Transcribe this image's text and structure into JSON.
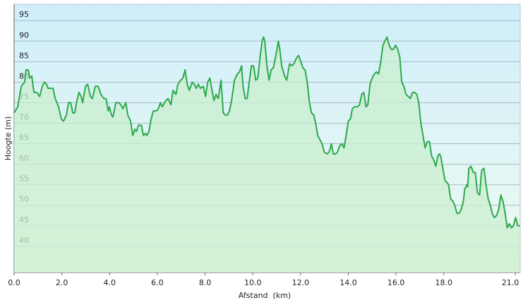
{
  "chart_data": {
    "type": "area",
    "color": "#2ea84c",
    "fill": "#c9efcf",
    "x_label": "Afstand  (km)",
    "y_label": "Hoogte (m)",
    "xlim": [
      0,
      21.2
    ],
    "ylim": [
      33.6,
      99
    ],
    "grid": true,
    "xticks": [
      {
        "value": 0,
        "label": "0.0"
      },
      {
        "value": 2,
        "label": "2.0"
      },
      {
        "value": 4,
        "label": "4.0"
      },
      {
        "value": 6,
        "label": "6.0"
      },
      {
        "value": 8,
        "label": "8.0"
      },
      {
        "value": 10,
        "label": "10.0"
      },
      {
        "value": 12,
        "label": "12.0"
      },
      {
        "value": 14,
        "label": "14.0"
      },
      {
        "value": 16,
        "label": "16.0"
      },
      {
        "value": 18,
        "label": "18.0"
      },
      {
        "value": 21,
        "label": "21.0"
      }
    ],
    "yticks": [
      40,
      45,
      50,
      55,
      60,
      65,
      70,
      75,
      80,
      85,
      90,
      95
    ],
    "x": [
      0,
      0.15,
      0.3,
      0.44,
      0.5,
      0.59,
      0.65,
      0.74,
      0.83,
      0.95,
      1.07,
      1.18,
      1.27,
      1.36,
      1.42,
      1.63,
      1.72,
      1.86,
      1.98,
      2.07,
      2.19,
      2.28,
      2.37,
      2.46,
      2.54,
      2.63,
      2.72,
      2.81,
      2.87,
      2.99,
      3.08,
      3.2,
      3.28,
      3.4,
      3.52,
      3.64,
      3.76,
      3.85,
      3.94,
      3.99,
      4.08,
      4.14,
      4.26,
      4.38,
      4.47,
      4.56,
      4.68,
      4.76,
      4.88,
      4.97,
      5.06,
      5.12,
      5.21,
      5.33,
      5.42,
      5.5,
      5.56,
      5.65,
      5.74,
      5.83,
      5.95,
      6.04,
      6.13,
      6.21,
      6.36,
      6.45,
      6.57,
      6.66,
      6.78,
      6.86,
      6.98,
      7.07,
      7.16,
      7.25,
      7.34,
      7.46,
      7.55,
      7.63,
      7.72,
      7.81,
      7.93,
      8.02,
      8.11,
      8.2,
      8.29,
      8.37,
      8.46,
      8.55,
      8.67,
      8.76,
      8.85,
      8.94,
      9.02,
      9.11,
      9.23,
      9.35,
      9.44,
      9.53,
      9.59,
      9.68,
      9.76,
      9.85,
      9.94,
      10.03,
      10.12,
      10.21,
      10.3,
      10.39,
      10.45,
      10.5,
      10.59,
      10.68,
      10.77,
      10.86,
      10.98,
      11.07,
      11.13,
      11.21,
      11.33,
      11.42,
      11.54,
      11.63,
      11.72,
      11.84,
      11.92,
      12.01,
      12.1,
      12.19,
      12.28,
      12.37,
      12.46,
      12.55,
      12.63,
      12.72,
      12.81,
      12.9,
      12.99,
      13.11,
      13.2,
      13.29,
      13.37,
      13.46,
      13.55,
      13.64,
      13.73,
      13.82,
      13.91,
      14,
      14.09,
      14.17,
      14.26,
      14.38,
      14.47,
      14.56,
      14.65,
      14.74,
      14.82,
      14.91,
      15,
      15.09,
      15.18,
      15.27,
      15.36,
      15.45,
      15.53,
      15.62,
      15.71,
      15.8,
      15.89,
      15.98,
      16.07,
      16.16,
      16.24,
      16.33,
      16.42,
      16.51,
      16.6,
      16.69,
      16.78,
      16.87,
      16.95,
      17.04,
      17.13,
      17.22,
      17.31,
      17.4,
      17.49,
      17.58,
      17.67,
      17.75,
      17.81,
      17.87,
      17.96,
      18.05,
      18.14,
      18.2,
      18.29,
      18.38,
      18.46,
      18.55,
      18.64,
      18.73,
      18.82,
      18.88,
      18.97,
      19,
      19.05,
      19.14,
      19.24,
      19.32,
      19.41,
      19.5,
      19.59,
      19.68,
      19.77,
      19.86,
      19.95,
      20.03,
      20.12,
      20.21,
      20.3,
      20.39,
      20.48,
      20.57,
      20.66,
      20.74,
      20.83,
      20.92,
      21.01,
      21.1,
      21.19
    ],
    "values": [
      72.5,
      74,
      79,
      80,
      83,
      83,
      81,
      81.5,
      77.5,
      77.5,
      76.5,
      79,
      80,
      79.5,
      78.5,
      78.5,
      76,
      74,
      71,
      70.5,
      72,
      75,
      75,
      72.5,
      72.5,
      75.5,
      77.5,
      76.5,
      75,
      79,
      79.5,
      76.5,
      76,
      79,
      79,
      77,
      76,
      76,
      73,
      74,
      72,
      71.5,
      75,
      75,
      74.5,
      73.5,
      75,
      72,
      70.5,
      67,
      68.5,
      68,
      69.5,
      69.5,
      67,
      67.5,
      67,
      68,
      71,
      73,
      73,
      73.5,
      75,
      74,
      75.5,
      76,
      74.5,
      78,
      77,
      79.5,
      80.5,
      81,
      83,
      79.5,
      78,
      80,
      79.5,
      78.5,
      79.5,
      78.5,
      79,
      76.5,
      80,
      81,
      78,
      75.5,
      77,
      76,
      80.5,
      72.5,
      72,
      72,
      73,
      75.5,
      80.5,
      82,
      82.5,
      84,
      79,
      76,
      76,
      80,
      84,
      84,
      80.5,
      81,
      86,
      90,
      91,
      90,
      84,
      80.5,
      83,
      83.5,
      87,
      90,
      88,
      84,
      81.5,
      80.5,
      84.5,
      84,
      84.5,
      86,
      86.5,
      85,
      83.5,
      83,
      80,
      75,
      72.5,
      72,
      70,
      67,
      66,
      65,
      63,
      62.5,
      63,
      65,
      62.5,
      62.5,
      63,
      64.5,
      65,
      64,
      67,
      70.5,
      71,
      73.5,
      74,
      74,
      74.5,
      77,
      77.5,
      74,
      74.5,
      79.5,
      81,
      82,
      82.5,
      82,
      85,
      89,
      90,
      91,
      89,
      88,
      88,
      89,
      88,
      86,
      80,
      79,
      77,
      76.5,
      76,
      77.5,
      77.5,
      77,
      75,
      70,
      67,
      64,
      65.5,
      65.5,
      62,
      61,
      59.5,
      62,
      62.5,
      62,
      59,
      56,
      55.5,
      55,
      51.5,
      51,
      50,
      48,
      48,
      49,
      51,
      54,
      55,
      54.5,
      59,
      59.5,
      58,
      58,
      53,
      52.5,
      58.5,
      59,
      55,
      51.5,
      50,
      48,
      47,
      47.5,
      49,
      52.5,
      51,
      48,
      44.5,
      45.5,
      44.5,
      45,
      47,
      45,
      45
    ]
  }
}
